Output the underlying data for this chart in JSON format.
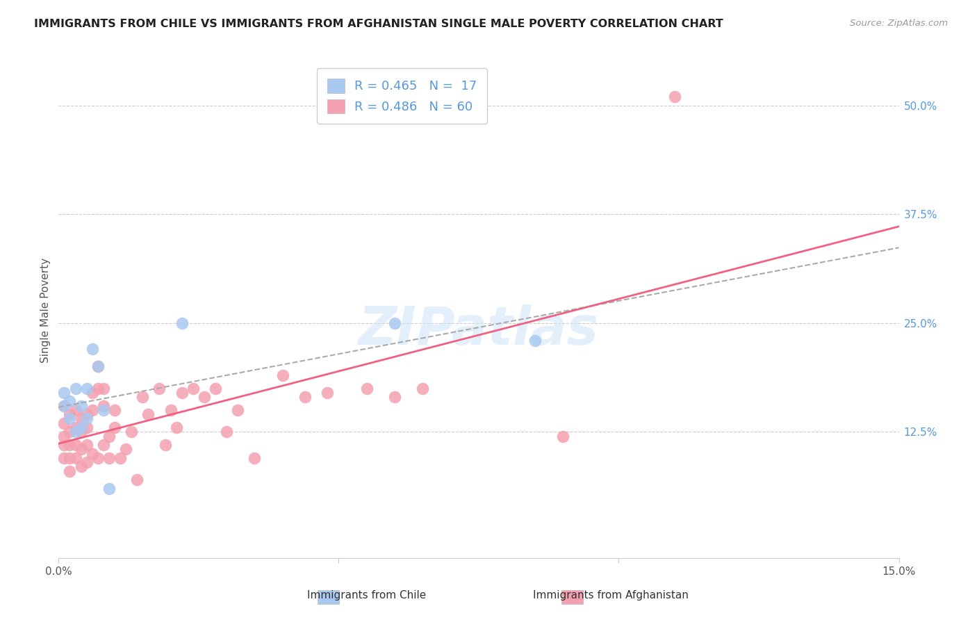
{
  "title": "IMMIGRANTS FROM CHILE VS IMMIGRANTS FROM AFGHANISTAN SINGLE MALE POVERTY CORRELATION CHART",
  "source": "Source: ZipAtlas.com",
  "ylabel": "Single Male Poverty",
  "xlim": [
    0.0,
    0.15
  ],
  "ylim": [
    -0.02,
    0.55
  ],
  "xticks": [
    0.0,
    0.05,
    0.1,
    0.15
  ],
  "xtick_labels": [
    "0.0%",
    "",
    "",
    "15.0%"
  ],
  "ytick_labels_right": [
    "50.0%",
    "37.5%",
    "25.0%",
    "12.5%"
  ],
  "ytick_vals_right": [
    0.5,
    0.375,
    0.25,
    0.125
  ],
  "chile_color": "#a8c8f0",
  "afghanistan_color": "#f4a0b0",
  "trend_chile_color": "#aaaaaa",
  "trend_afghanistan_color": "#f06080",
  "legend_r_chile": "R = 0.465",
  "legend_n_chile": "N =  17",
  "legend_r_afghanistan": "R = 0.486",
  "legend_n_afghanistan": "N = 60",
  "watermark": "ZIPatlas",
  "chile_x": [
    0.001,
    0.001,
    0.002,
    0.002,
    0.003,
    0.003,
    0.004,
    0.004,
    0.005,
    0.005,
    0.006,
    0.007,
    0.008,
    0.009,
    0.022,
    0.06,
    0.085
  ],
  "chile_y": [
    0.155,
    0.17,
    0.14,
    0.16,
    0.125,
    0.175,
    0.13,
    0.155,
    0.14,
    0.175,
    0.22,
    0.2,
    0.15,
    0.06,
    0.25,
    0.25,
    0.23
  ],
  "afghanistan_x": [
    0.001,
    0.001,
    0.001,
    0.001,
    0.001,
    0.002,
    0.002,
    0.002,
    0.002,
    0.002,
    0.003,
    0.003,
    0.003,
    0.003,
    0.004,
    0.004,
    0.004,
    0.004,
    0.005,
    0.005,
    0.005,
    0.005,
    0.006,
    0.006,
    0.006,
    0.007,
    0.007,
    0.007,
    0.008,
    0.008,
    0.008,
    0.009,
    0.009,
    0.01,
    0.01,
    0.011,
    0.012,
    0.013,
    0.014,
    0.015,
    0.016,
    0.018,
    0.019,
    0.02,
    0.021,
    0.022,
    0.024,
    0.026,
    0.028,
    0.03,
    0.032,
    0.035,
    0.04,
    0.044,
    0.048,
    0.055,
    0.06,
    0.065,
    0.09,
    0.11
  ],
  "afghanistan_y": [
    0.095,
    0.11,
    0.12,
    0.135,
    0.155,
    0.08,
    0.095,
    0.11,
    0.125,
    0.145,
    0.095,
    0.11,
    0.13,
    0.15,
    0.085,
    0.105,
    0.125,
    0.14,
    0.09,
    0.11,
    0.13,
    0.145,
    0.1,
    0.15,
    0.17,
    0.095,
    0.175,
    0.2,
    0.11,
    0.155,
    0.175,
    0.095,
    0.12,
    0.13,
    0.15,
    0.095,
    0.105,
    0.125,
    0.07,
    0.165,
    0.145,
    0.175,
    0.11,
    0.15,
    0.13,
    0.17,
    0.175,
    0.165,
    0.175,
    0.125,
    0.15,
    0.095,
    0.19,
    0.165,
    0.17,
    0.175,
    0.165,
    0.175,
    0.12,
    0.51
  ]
}
